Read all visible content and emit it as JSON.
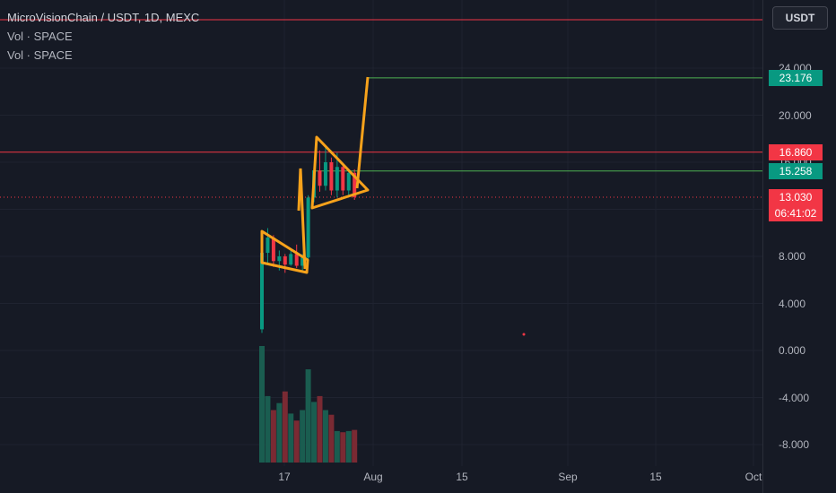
{
  "legend": {
    "title": "MicroVisionChain / USDT, 1D, MEXC",
    "indicators": [
      "Vol · SPACE",
      "Vol · SPACE"
    ]
  },
  "currency_button": "USDT",
  "y_axis": {
    "ticks": [
      "24.000",
      "20.000",
      "16.000",
      "12.000",
      "8.000",
      "4.000",
      "0.000",
      "-4.000",
      "-8.000"
    ],
    "tick_values": [
      24,
      20,
      16,
      12,
      8,
      4,
      0,
      -4,
      -8
    ]
  },
  "x_axis": {
    "ticks": [
      "17",
      "Aug",
      "15",
      "Sep",
      "15",
      "Oct"
    ]
  },
  "price_labels": [
    {
      "text": "23.176",
      "value": 23.176,
      "color": "#089981"
    },
    {
      "text": "16.860",
      "value": 16.86,
      "color": "#f23645"
    },
    {
      "text": "15.258",
      "value": 15.258,
      "color": "#089981"
    },
    {
      "text": "13.030",
      "value": 13.03,
      "color": "#f23645"
    }
  ],
  "countdown": "06:41:02",
  "colors": {
    "background": "#161a25",
    "up": "#089981",
    "down": "#f23645",
    "drawing": "#f7a21b",
    "target_line": "#4caf50",
    "resistance_line": "#f23645"
  },
  "chart_data": {
    "type": "candlestick",
    "symbol": "MicroVisionChain / USDT",
    "interval": "1D",
    "exchange": "MEXC",
    "horizontal_lines": [
      {
        "value": 16.86,
        "color": "#f23645"
      },
      {
        "value": 15.258,
        "color": "#4caf50"
      },
      {
        "value": 23.176,
        "color": "#4caf50"
      },
      {
        "value": 13.03,
        "color": "#f23645",
        "style": "dotted"
      }
    ],
    "candles": [
      {
        "o": 1.8,
        "h": 8.6,
        "l": 1.5,
        "c": 8.3
      },
      {
        "o": 8.3,
        "h": 10.4,
        "l": 7.4,
        "c": 9.6
      },
      {
        "o": 9.6,
        "h": 9.8,
        "l": 7.1,
        "c": 7.6
      },
      {
        "o": 7.6,
        "h": 8.5,
        "l": 6.8,
        "c": 8.0
      },
      {
        "o": 8.0,
        "h": 8.2,
        "l": 6.6,
        "c": 7.3
      },
      {
        "o": 7.3,
        "h": 8.6,
        "l": 7.2,
        "c": 8.2
      },
      {
        "o": 8.2,
        "h": 9.0,
        "l": 7.0,
        "c": 7.2
      },
      {
        "o": 7.2,
        "h": 8.2,
        "l": 6.8,
        "c": 7.9
      },
      {
        "o": 7.9,
        "h": 13.2,
        "l": 7.6,
        "c": 13.0
      },
      {
        "o": 13.0,
        "h": 15.8,
        "l": 12.6,
        "c": 15.3
      },
      {
        "o": 15.3,
        "h": 17.0,
        "l": 13.5,
        "c": 14.0
      },
      {
        "o": 14.0,
        "h": 17.3,
        "l": 13.6,
        "c": 16.0
      },
      {
        "o": 16.0,
        "h": 16.4,
        "l": 13.2,
        "c": 13.6
      },
      {
        "o": 13.6,
        "h": 16.8,
        "l": 13.0,
        "c": 15.6
      },
      {
        "o": 15.6,
        "h": 15.9,
        "l": 13.2,
        "c": 13.6
      },
      {
        "o": 13.6,
        "h": 15.3,
        "l": 13.1,
        "c": 15.1
      },
      {
        "o": 15.1,
        "h": 15.4,
        "l": 12.8,
        "c": 13.03
      }
    ],
    "volume_relative": [
      1.0,
      0.57,
      0.45,
      0.51,
      0.61,
      0.42,
      0.36,
      0.45,
      0.8,
      0.52,
      0.57,
      0.45,
      0.41,
      0.27,
      0.26,
      0.27,
      0.28
    ],
    "y_range": [
      -9.5,
      26.5
    ]
  }
}
